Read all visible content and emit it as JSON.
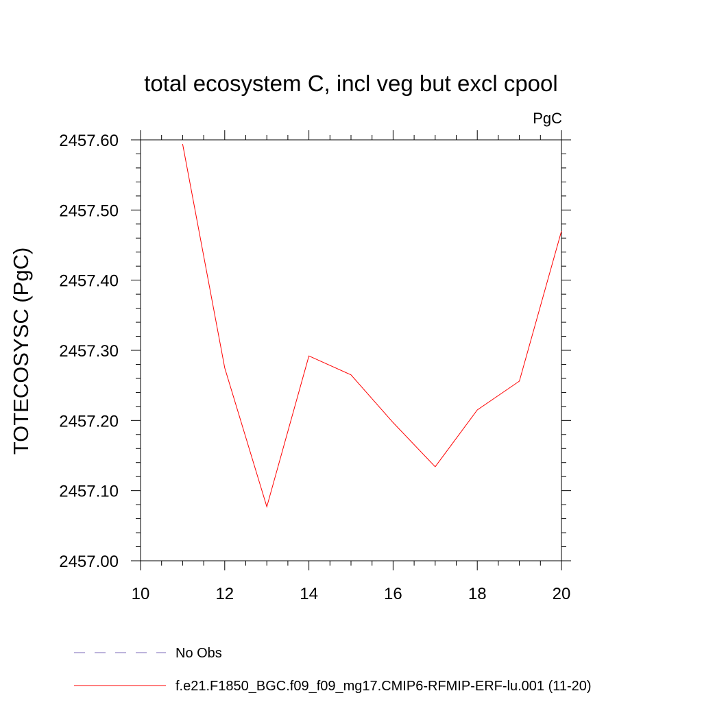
{
  "chart_data": {
    "type": "line",
    "title": "total ecosystem C, incl veg but excl cpool",
    "units_label": "PgC",
    "ylabel": "TOTECOSYSC  (PgC)",
    "xlabel": "",
    "xlim": [
      10,
      20
    ],
    "ylim": [
      2457.0,
      2457.6
    ],
    "x_ticks": [
      "10",
      "12",
      "14",
      "16",
      "18",
      "20"
    ],
    "y_ticks": [
      "2457.00",
      "2457.10",
      "2457.20",
      "2457.30",
      "2457.40",
      "2457.50",
      "2457.60"
    ],
    "grid": false,
    "series": [
      {
        "name": "f.e21.F1850_BGC.f09_f09_mg17.CMIP6-RFMIP-ERF-lu.001 (11-20)",
        "color": "#ff0000",
        "x": [
          11,
          12,
          13,
          14,
          15,
          16,
          17,
          18,
          19,
          20
        ],
        "y": [
          2457.594,
          2457.275,
          2457.077,
          2457.292,
          2457.265,
          2457.197,
          2457.134,
          2457.215,
          2457.256,
          2457.47
        ]
      }
    ],
    "legend": {
      "placement": "bottom",
      "entries": [
        {
          "label": "No Obs",
          "color": "#7b68b8",
          "style": "dashed"
        },
        {
          "label": "f.e21.F1850_BGC.f09_f09_mg17.CMIP6-RFMIP-ERF-lu.001 (11-20)",
          "color": "#ff0000",
          "style": "solid"
        }
      ]
    }
  }
}
